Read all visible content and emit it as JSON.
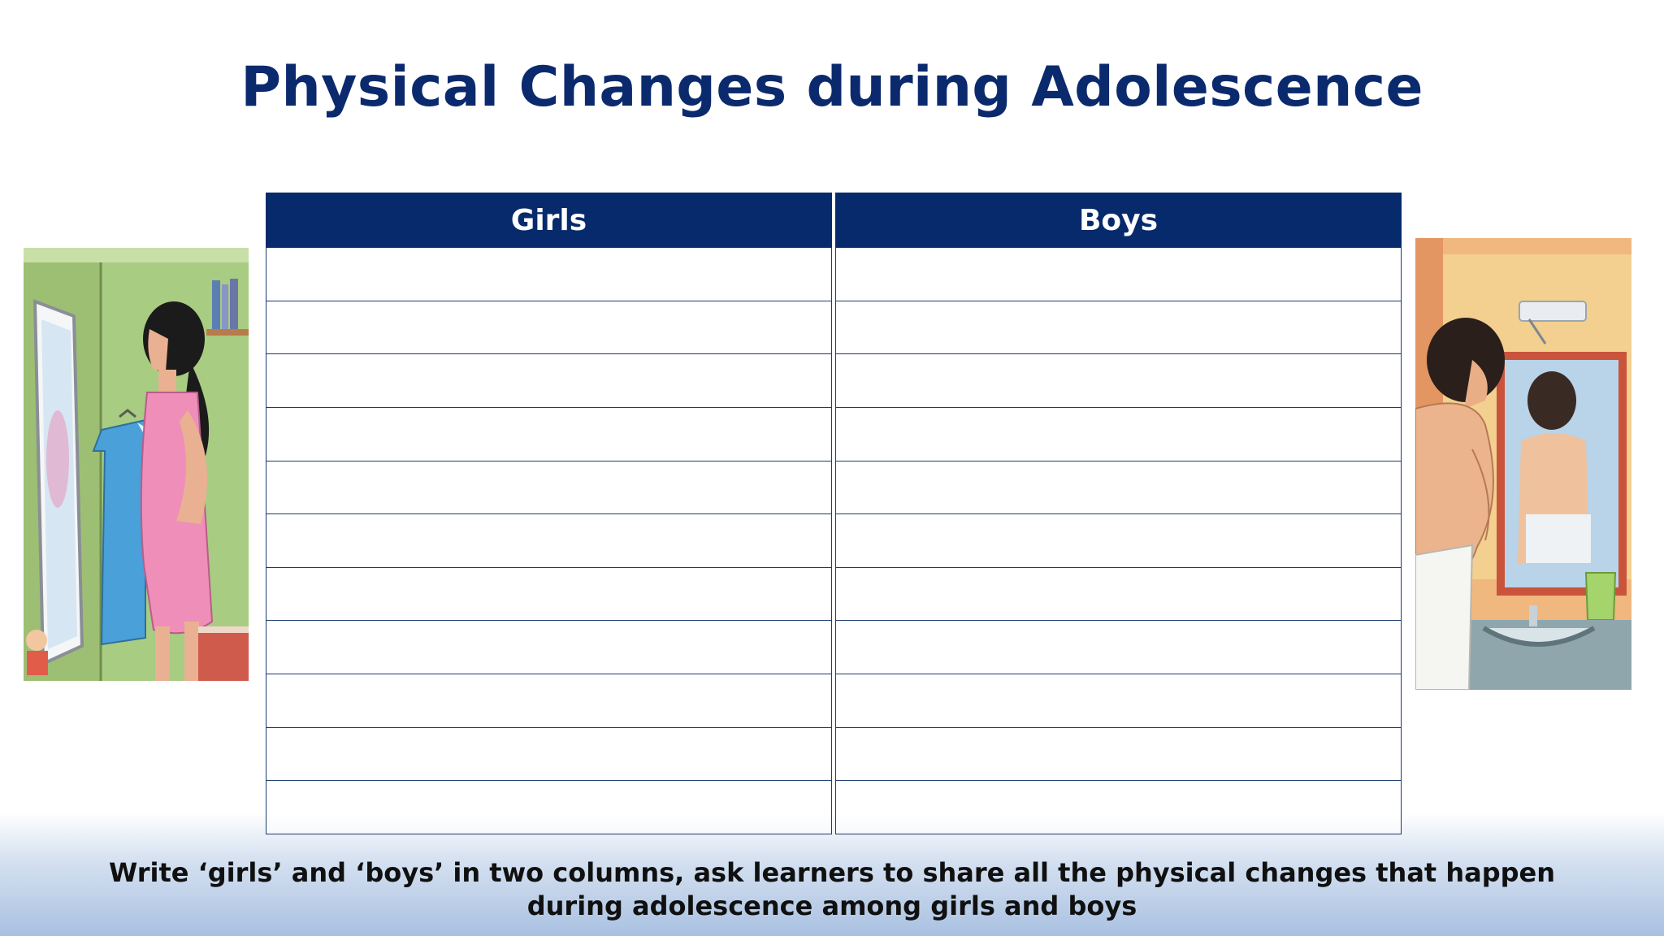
{
  "slide": {
    "title": "Physical Changes during Adolescence",
    "instruction": "Write ‘girls’ and ‘boys’ in two columns,  ask learners to share all the physical changes that happen during adolescence among girls and boys"
  },
  "table": {
    "headers": [
      "Girls",
      "Boys"
    ],
    "rows": [
      [
        "",
        ""
      ],
      [
        "",
        ""
      ],
      [
        "",
        ""
      ],
      [
        "",
        ""
      ],
      [
        "",
        ""
      ],
      [
        "",
        ""
      ],
      [
        "",
        ""
      ],
      [
        "",
        ""
      ],
      [
        "",
        ""
      ],
      [
        "",
        ""
      ],
      [
        "",
        ""
      ]
    ]
  },
  "colors": {
    "title": "#0b2a6e",
    "header_bg": "#062a6b",
    "header_text": "#ffffff",
    "grid": "#1e3a6e"
  },
  "illustrations": {
    "left": "girl-at-mirror-illustration",
    "right": "boy-at-mirror-illustration"
  }
}
